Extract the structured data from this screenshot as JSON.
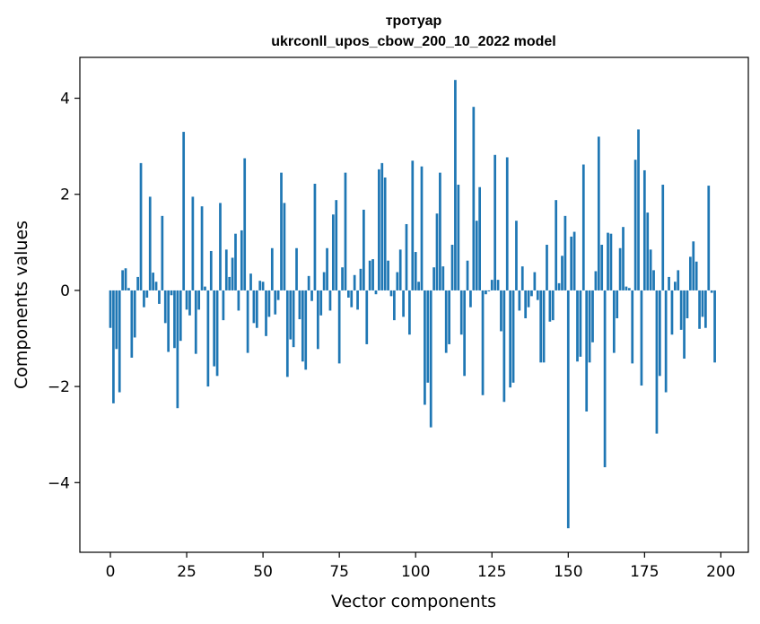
{
  "chart_data": {
    "type": "bar",
    "title_line1": "тротуар",
    "title_line2": "ukrconll_upos_cbow_200_10_2022 model",
    "xlabel": "Vector components",
    "ylabel": "Components values",
    "xlim": [
      -10,
      209
    ],
    "ylim": [
      -5.45,
      4.85
    ],
    "xticks": [
      0,
      25,
      50,
      75,
      100,
      125,
      150,
      175,
      200
    ],
    "yticks": [
      -4,
      -2,
      0,
      2,
      4
    ],
    "ytick_labels": [
      "−4",
      "−2",
      "0",
      "2",
      "4"
    ],
    "bar_color": "#1f77b4",
    "values": [
      -0.78,
      -2.35,
      -1.22,
      -2.12,
      0.42,
      0.46,
      0.05,
      -1.4,
      -0.98,
      0.28,
      2.65,
      -0.35,
      -0.15,
      1.95,
      0.37,
      0.18,
      -0.28,
      1.55,
      -0.68,
      -1.28,
      -0.1,
      -1.2,
      -2.45,
      -1.05,
      3.3,
      -0.4,
      -0.52,
      1.95,
      -1.32,
      -0.4,
      1.75,
      0.08,
      -2.0,
      0.82,
      -1.58,
      -1.78,
      1.82,
      -0.62,
      0.85,
      0.28,
      0.68,
      1.18,
      -0.42,
      1.25,
      2.75,
      -1.3,
      0.35,
      -0.68,
      -0.78,
      0.2,
      0.18,
      -0.95,
      -0.55,
      0.88,
      -0.5,
      -0.2,
      2.45,
      1.82,
      -1.8,
      -1.02,
      -1.18,
      0.88,
      -0.6,
      -1.48,
      -1.65,
      0.3,
      -0.22,
      2.22,
      -1.22,
      -0.52,
      0.38,
      0.88,
      -0.42,
      1.58,
      1.88,
      -1.52,
      0.48,
      2.45,
      -0.15,
      -0.35,
      0.32,
      -0.4,
      0.45,
      1.68,
      -1.12,
      0.62,
      0.65,
      -0.08,
      2.52,
      2.65,
      2.35,
      0.62,
      -0.12,
      -0.62,
      0.38,
      0.85,
      -0.55,
      1.38,
      -0.92,
      2.7,
      0.8,
      0.18,
      2.58,
      -2.38,
      -1.92,
      -2.85,
      0.48,
      1.6,
      2.45,
      0.5,
      -1.3,
      -1.12,
      0.95,
      4.38,
      2.2,
      -0.92,
      -1.78,
      0.62,
      -0.35,
      3.82,
      1.45,
      2.15,
      -2.18,
      -0.08,
      -0.02,
      0.22,
      2.82,
      0.22,
      -0.85,
      -2.32,
      2.77,
      -2.02,
      -1.92,
      1.45,
      -0.42,
      0.5,
      -0.58,
      -0.35,
      -0.12,
      0.38,
      -0.2,
      -1.5,
      -1.5,
      0.95,
      -0.65,
      -0.62,
      1.88,
      0.15,
      0.72,
      1.55,
      -4.95,
      1.12,
      1.22,
      -1.48,
      -1.38,
      2.62,
      -2.52,
      -1.5,
      -1.08,
      0.4,
      3.2,
      0.95,
      -3.68,
      1.2,
      1.18,
      -1.3,
      -0.58,
      0.88,
      1.32,
      0.08,
      0.05,
      -1.52,
      2.72,
      3.35,
      -1.98,
      2.5,
      1.62,
      0.85,
      0.42,
      -2.98,
      -1.78,
      2.2,
      -2.12,
      0.28,
      -0.92,
      0.18,
      0.42,
      -0.82,
      -1.42,
      -0.58,
      0.7,
      1.02,
      0.6,
      -0.8,
      -0.55,
      -0.78,
      2.18,
      -0.05,
      -1.5
    ]
  }
}
